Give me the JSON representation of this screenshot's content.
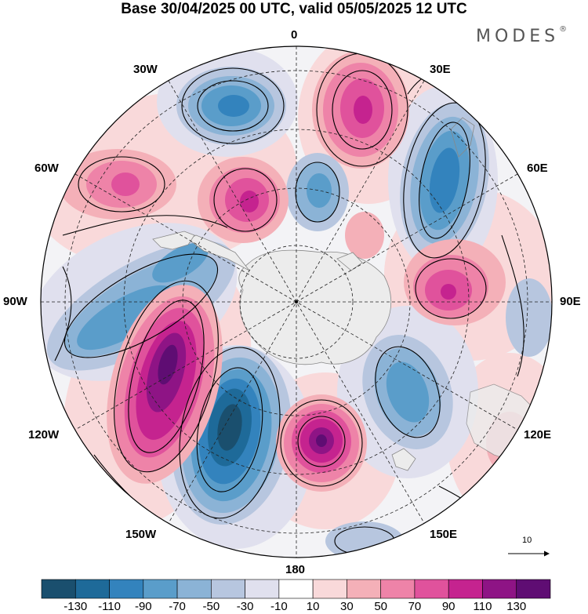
{
  "title": "Base 30/04/2025 00 UTC, valid 05/05/2025 12 UTC",
  "brand": "MODES",
  "brand_mark": "®",
  "longitude_labels": {
    "lon_0": "0",
    "lon_30e": "30E",
    "lon_60e": "60E",
    "lon_90e": "90E",
    "lon_120e": "120E",
    "lon_150e": "150E",
    "lon_180": "180",
    "lon_150w": "150W",
    "lon_120w": "120W",
    "lon_90w": "90W",
    "lon_60w": "60W",
    "lon_30w": "30W"
  },
  "reference_vector": "10",
  "colorbar": {
    "colors": [
      "#1a4f6e",
      "#1e6a99",
      "#3383bd",
      "#5a9dca",
      "#8bb3d6",
      "#b7c6df",
      "#e0e0ee",
      "#ffffff",
      "#f9d9da",
      "#f4b0b8",
      "#ee83a8",
      "#e0529c",
      "#c5238f",
      "#8e1485",
      "#5f0d73"
    ],
    "tick_labels": [
      "-130",
      "-110",
      "-90",
      "-70",
      "-50",
      "-30",
      "-10",
      "10",
      "30",
      "50",
      "70",
      "90",
      "110",
      "130"
    ]
  },
  "chart_data": {
    "type": "polar-stereographic-map",
    "variable": "anomaly field with wind vectors",
    "levels": [
      -130,
      -110,
      -90,
      -70,
      -50,
      -30,
      -10,
      10,
      30,
      50,
      70,
      90,
      110,
      130
    ],
    "anomaly_centers": [
      {
        "near": "30W-0",
        "sign": "negative",
        "approx": -80
      },
      {
        "near": "20E",
        "sign": "positive",
        "approx": 90
      },
      {
        "near": "45E",
        "sign": "negative",
        "approx": -90
      },
      {
        "near": "60W",
        "sign": "positive",
        "approx": 60
      },
      {
        "near": "30W inner",
        "sign": "positive",
        "approx": 100
      },
      {
        "near": "0 inner",
        "sign": "negative",
        "approx": -70
      },
      {
        "near": "80E",
        "sign": "positive",
        "approx": 90
      },
      {
        "near": "70W",
        "sign": "negative",
        "approx": -70
      },
      {
        "near": "115W",
        "sign": "positive",
        "approx": 130
      },
      {
        "near": "150W",
        "sign": "negative",
        "approx": -130
      },
      {
        "near": "165E",
        "sign": "positive",
        "approx": 120
      },
      {
        "near": "125E",
        "sign": "negative",
        "approx": -70
      }
    ]
  }
}
